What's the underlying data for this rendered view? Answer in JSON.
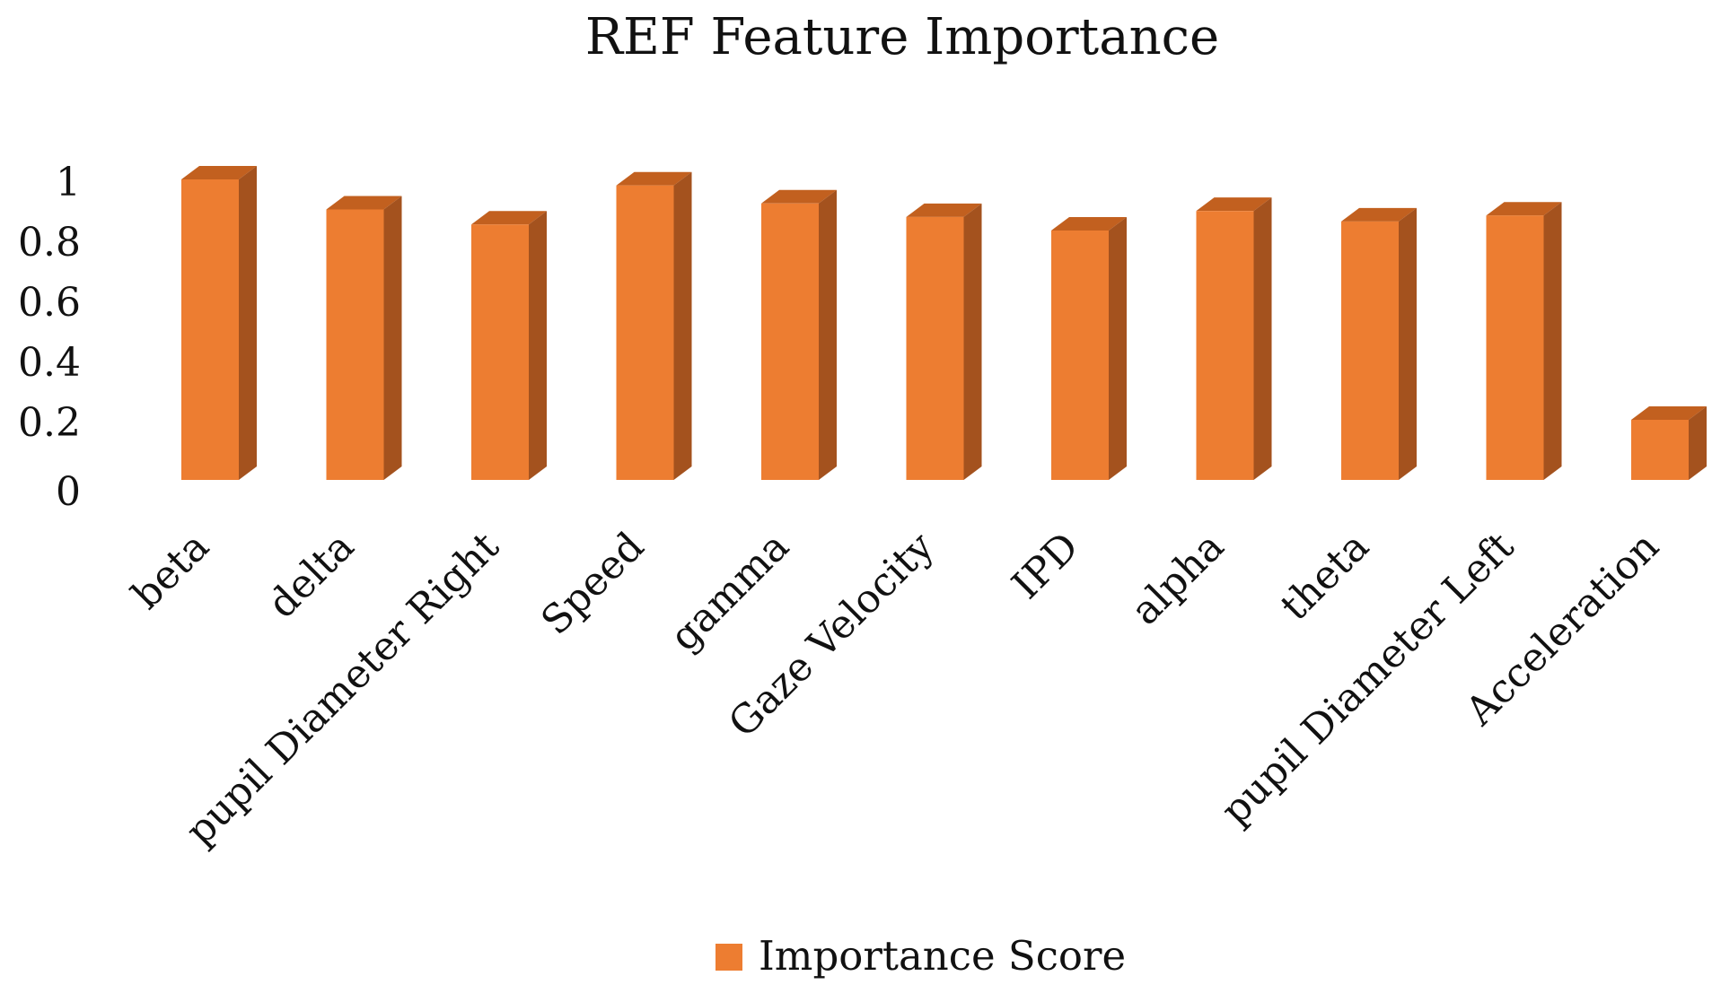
{
  "chart_data": {
    "type": "bar",
    "title": "REF Feature Importance",
    "xlabel": "",
    "ylabel": "",
    "categories": [
      "beta",
      "delta",
      "pupil Diameter Right",
      "Speed",
      "gamma",
      "Gaze Velocity",
      "IPD",
      "alpha",
      "theta",
      "pupil Diameter Left",
      "Acceleration"
    ],
    "series": [
      {
        "name": "Importance Score",
        "values": [
          1.0,
          0.9,
          0.85,
          0.98,
          0.92,
          0.875,
          0.83,
          0.895,
          0.86,
          0.88,
          0.2
        ]
      }
    ],
    "ylim": [
      0,
      1
    ],
    "y_ticks": [
      "0",
      "0.2",
      "0.4",
      "0.6",
      "0.8",
      "1"
    ],
    "grid": false,
    "legend_position": "bottom",
    "colors": {
      "bar_front": "#ED7D31",
      "bar_side": "#A4521E",
      "bar_top": "#C2601F"
    }
  }
}
